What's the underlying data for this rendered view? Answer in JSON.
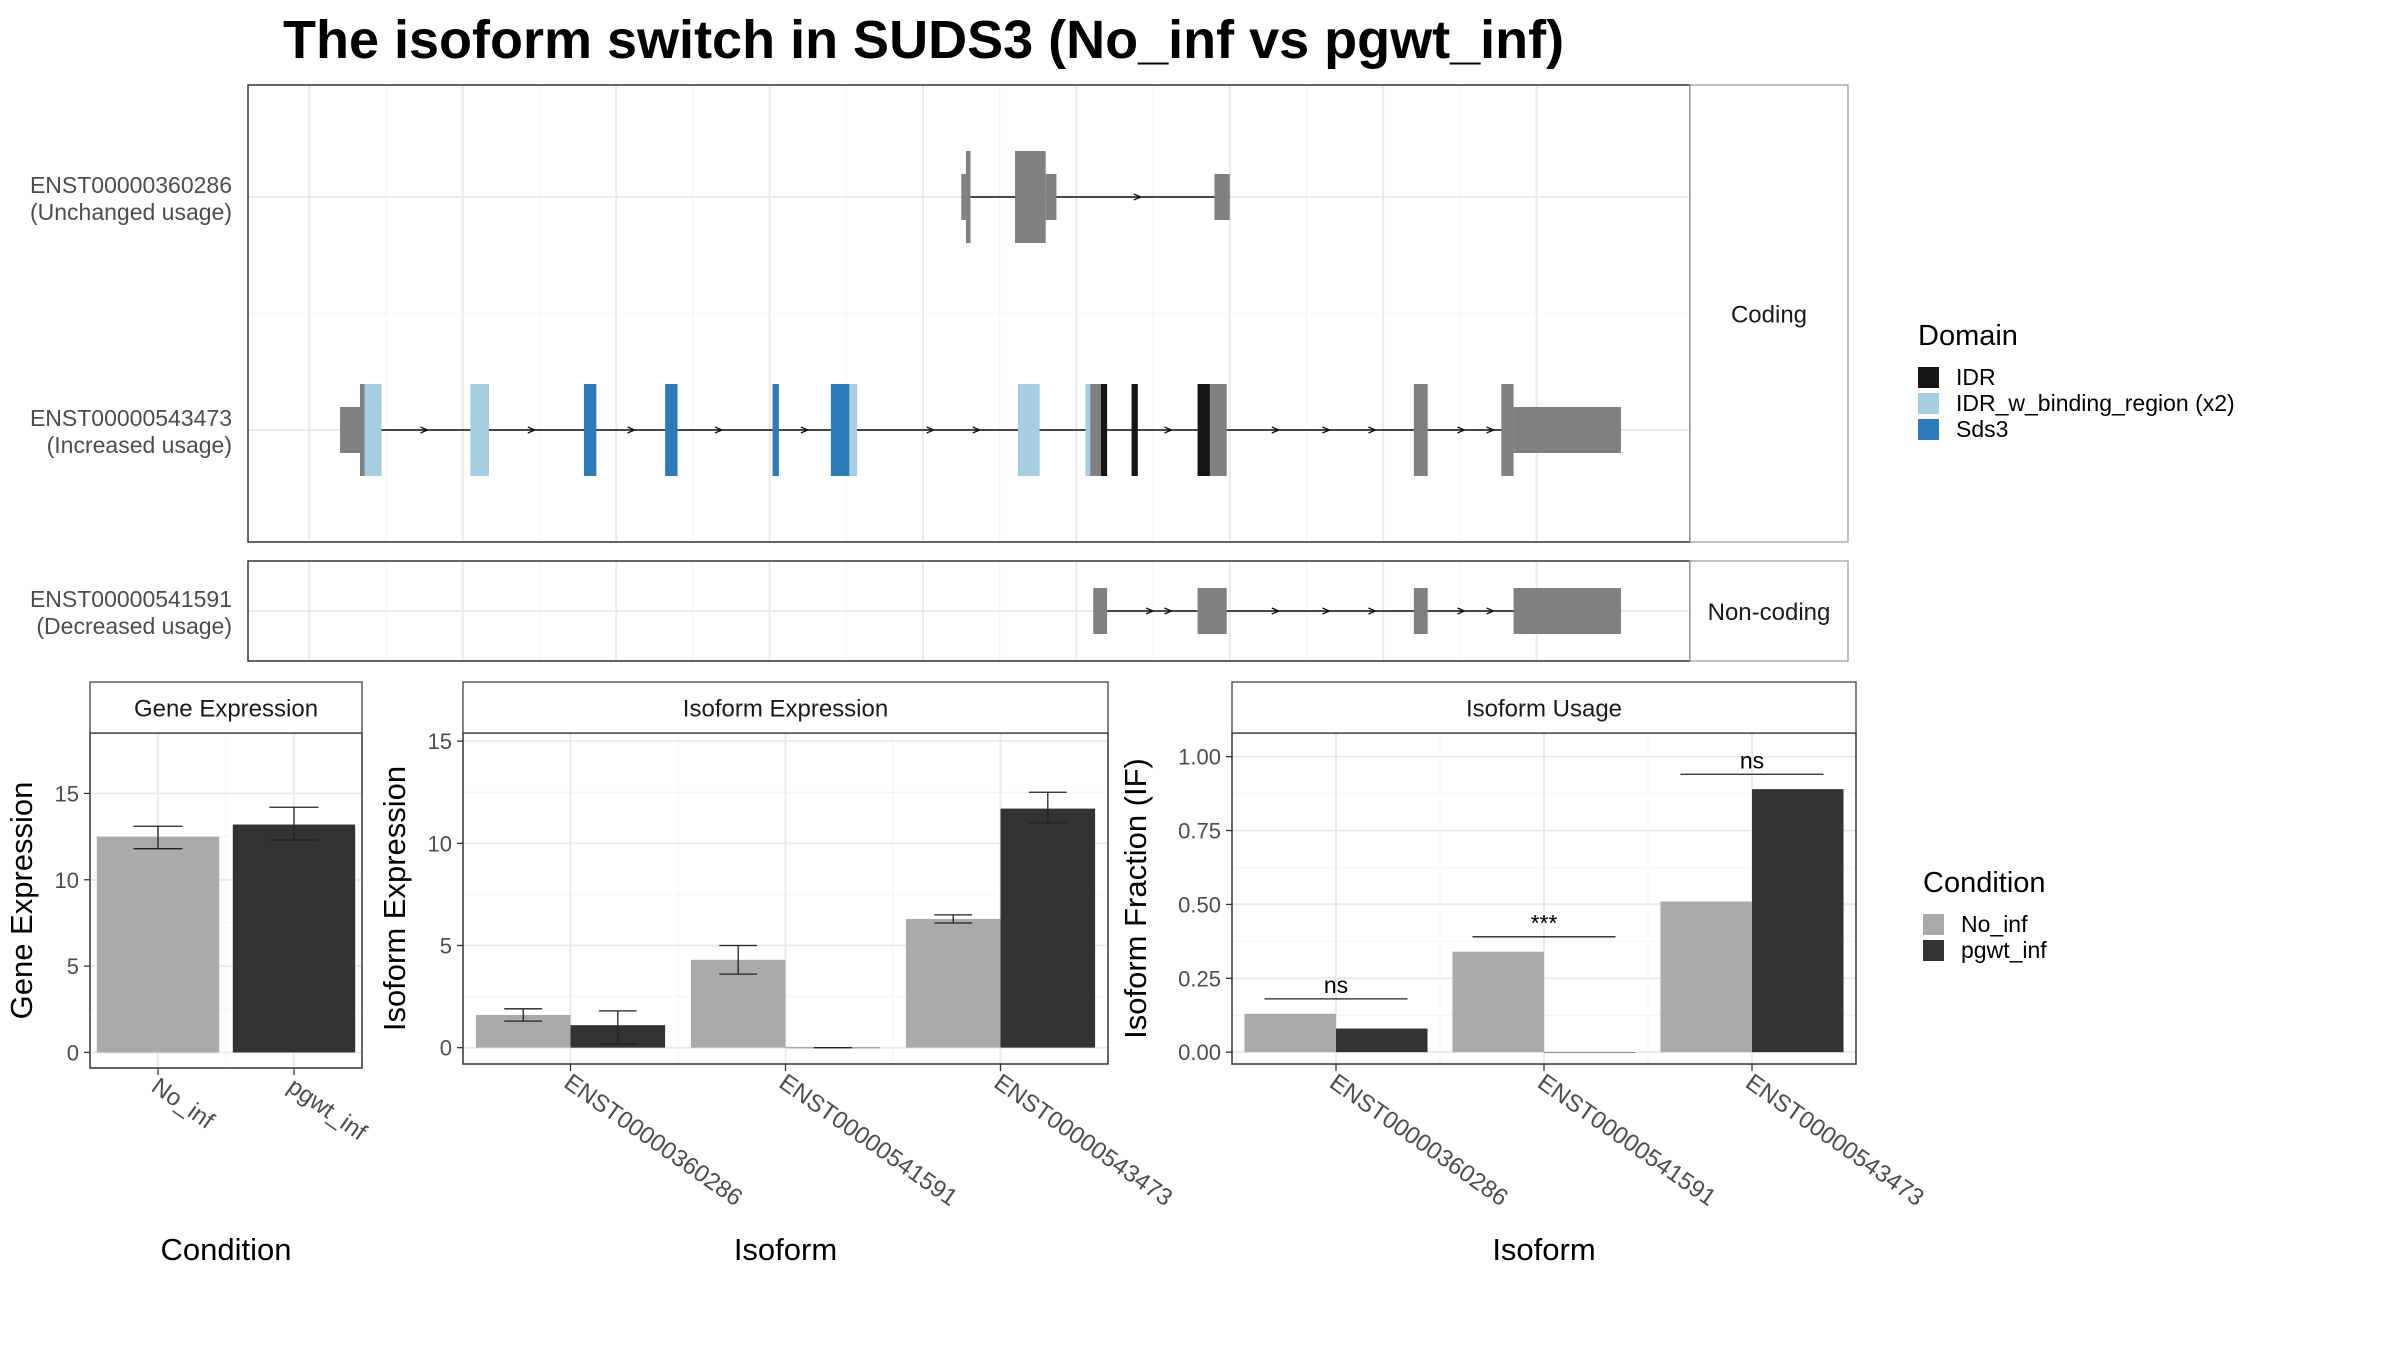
{
  "title": "The isoform switch in SUDS3 (No_inf vs pgwt_inf)",
  "colors": {
    "exon": "#808080",
    "IDR": "#151515",
    "IDR_w_binding_region (x2)": "#a6cee3",
    "Sds3": "#2b7bb9",
    "No_inf": "#aaaaaa",
    "pgwt_inf": "#333333"
  },
  "domain_legend": {
    "title": "Domain",
    "items": [
      "IDR",
      "IDR_w_binding_region (x2)",
      "Sds3"
    ]
  },
  "condition_legend": {
    "title": "Condition",
    "items": [
      "No_inf",
      "pgwt_inf"
    ]
  },
  "transcripts": {
    "facets": [
      "Coding",
      "Non-coding"
    ],
    "tracks": [
      {
        "id": "ENST00000360286",
        "usage": "(Unchanged usage)",
        "facet": "Coding",
        "exons": [
          [
            1405,
            1408,
            "utr"
          ],
          [
            1408,
            1411,
            "cds"
          ],
          [
            1440,
            1460,
            "cds"
          ],
          [
            1460,
            1467,
            "utr"
          ],
          [
            1570,
            1580,
            "utr"
          ]
        ],
        "arrows": [
          1520
        ]
      },
      {
        "id": "ENST00000543473",
        "usage": "(Increased usage)",
        "facet": "Coding",
        "exons": [
          [
            1000,
            1013,
            "utr"
          ],
          [
            1013,
            1016,
            "cds"
          ],
          [
            1016,
            1027,
            "cds"
          ],
          [
            1085,
            1097,
            "cds"
          ],
          [
            1159,
            1167,
            "cds"
          ],
          [
            1212,
            1220,
            "cds"
          ],
          [
            1282,
            1286,
            "cds"
          ],
          [
            1320,
            1332,
            "cds"
          ],
          [
            1332,
            1337,
            "cds"
          ],
          [
            1442,
            1456,
            "cds"
          ],
          [
            1486,
            1489,
            "cds"
          ],
          [
            1489,
            1496,
            "cds"
          ],
          [
            1496,
            1500,
            "cds"
          ],
          [
            1516,
            1520,
            "cds"
          ],
          [
            1559,
            1567,
            "cds"
          ],
          [
            1567,
            1578,
            "cds"
          ],
          [
            1700,
            1709,
            "cds"
          ],
          [
            1757,
            1765,
            "cds"
          ],
          [
            1765,
            1835,
            "utr"
          ]
        ],
        "domains": [
          [
            "IDR_w_binding_region (x2)",
            1016,
            1027
          ],
          [
            "IDR_w_binding_region (x2)",
            1085,
            1097
          ],
          [
            "Sds3",
            1159,
            1167
          ],
          [
            "Sds3",
            1212,
            1220
          ],
          [
            "Sds3",
            1282,
            1286
          ],
          [
            "Sds3",
            1320,
            1332
          ],
          [
            "IDR_w_binding_region (x2)",
            1332,
            1337
          ],
          [
            "IDR_w_binding_region (x2)",
            1442,
            1456
          ],
          [
            "IDR_w_binding_region (x2)",
            1486,
            1489
          ],
          [
            "IDR",
            1496,
            1500
          ],
          [
            "IDR",
            1516,
            1520
          ],
          [
            "IDR",
            1559,
            1567
          ]
        ],
        "arrows": [
          1055,
          1125,
          1190,
          1247,
          1303,
          1385,
          1415,
          1540,
          1610,
          1643,
          1673,
          1731,
          1750
        ]
      },
      {
        "id": "ENST00000541591",
        "usage": "(Decreased usage)",
        "facet": "Non-coding",
        "exons": [
          [
            1491,
            1500,
            "utr"
          ],
          [
            1559,
            1578,
            "utr"
          ],
          [
            1700,
            1709,
            "utr"
          ],
          [
            1765,
            1835,
            "utr"
          ]
        ],
        "arrows": [
          1528,
          1540,
          1610,
          1643,
          1673,
          1731,
          1750
        ]
      }
    ]
  },
  "chart_data": [
    {
      "type": "bar",
      "title": "Gene Expression",
      "xlabel": "Condition",
      "ylabel": "Gene Expression",
      "categories": [
        "No_inf",
        "pgwt_inf"
      ],
      "values": [
        12.5,
        13.2
      ],
      "error_low": [
        11.8,
        12.3
      ],
      "error_high": [
        13.1,
        14.2
      ],
      "ylim": [
        -0.9,
        18.5
      ],
      "yticks": [
        0,
        5,
        10,
        15
      ]
    },
    {
      "type": "bar",
      "title": "Isoform Expression",
      "xlabel": "Isoform",
      "ylabel": "Isoform Expression",
      "categories": [
        "ENST00000360286",
        "ENST00000541591",
        "ENST00000543473"
      ],
      "series": [
        {
          "name": "No_inf",
          "values": [
            1.6,
            4.3,
            6.3
          ],
          "error_low": [
            1.3,
            3.6,
            6.1
          ],
          "error_high": [
            1.9,
            5.0,
            6.5
          ]
        },
        {
          "name": "pgwt_inf",
          "values": [
            1.1,
            0.0,
            11.7
          ],
          "error_low": [
            0.2,
            0.0,
            11.0
          ],
          "error_high": [
            1.8,
            0.0,
            12.5
          ]
        }
      ],
      "ylim": [
        -0.8,
        15.4
      ],
      "yticks": [
        0,
        5,
        10,
        15
      ]
    },
    {
      "type": "bar",
      "title": "Isoform Usage",
      "xlabel": "Isoform",
      "ylabel": "Isoform Fraction (IF)",
      "categories": [
        "ENST00000360286",
        "ENST00000541591",
        "ENST00000543473"
      ],
      "series": [
        {
          "name": "No_inf",
          "values": [
            0.13,
            0.34,
            0.51
          ]
        },
        {
          "name": "pgwt_inf",
          "values": [
            0.08,
            0.0,
            0.89
          ]
        }
      ],
      "significance": [
        "ns",
        "***",
        "ns"
      ],
      "ylim": [
        -0.04,
        1.08
      ],
      "yticks": [
        0.0,
        0.25,
        0.5,
        0.75,
        1.0
      ],
      "ytick_labels": [
        "0.00",
        "0.25",
        "0.50",
        "0.75",
        "1.00"
      ]
    }
  ]
}
